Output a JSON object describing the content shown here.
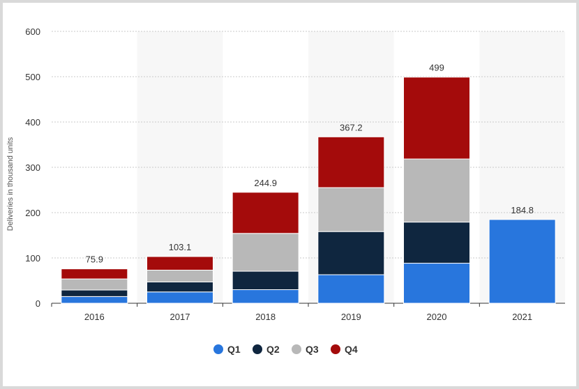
{
  "chart_data": {
    "type": "bar",
    "stacked": true,
    "categories": [
      "2016",
      "2017",
      "2018",
      "2019",
      "2020",
      "2021"
    ],
    "series": [
      {
        "name": "Q1",
        "color": "#2876dd",
        "values": [
          14.8,
          25.0,
          30.0,
          63.0,
          88.4,
          184.8
        ]
      },
      {
        "name": "Q2",
        "color": "#0f263f",
        "values": [
          14.4,
          22.0,
          40.7,
          95.2,
          90.7,
          null
        ]
      },
      {
        "name": "Q3",
        "color": "#b8b8b8",
        "values": [
          24.5,
          26.1,
          83.5,
          97.0,
          139.3,
          null
        ]
      },
      {
        "name": "Q4",
        "color": "#a40b0b",
        "values": [
          22.2,
          30.0,
          90.7,
          112.0,
          180.6,
          null
        ]
      }
    ],
    "totals": [
      "75.9",
      "103.1",
      "244.9",
      "367.2",
      "499",
      "184.8"
    ],
    "ylabel": "Deliveries in thousand units",
    "ylim": [
      0,
      600
    ],
    "yticks": [
      0,
      100,
      200,
      300,
      400,
      500,
      600
    ],
    "grid": true,
    "legend": "bottom-center"
  }
}
